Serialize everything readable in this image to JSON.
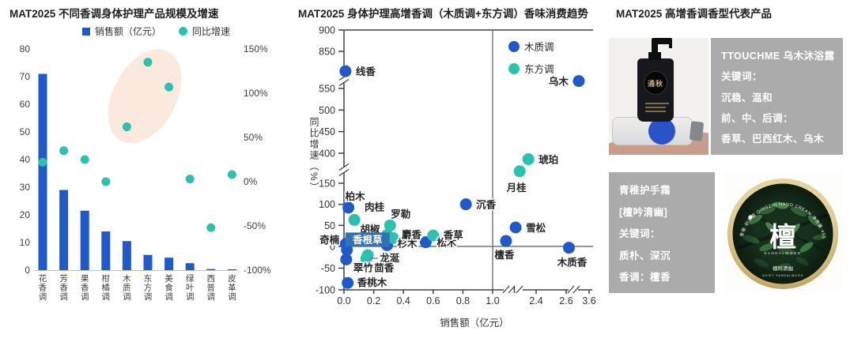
{
  "colors": {
    "blue": "#1f5ac8",
    "teal": "#2cc1af",
    "highlight": "#fbe9dd",
    "axis": "#404040",
    "quadrant": "#595959",
    "label_box": "#2e74b5",
    "gray_box": "#ababab"
  },
  "titles": {
    "left": "MAT2025 不同香调身体护理产品规模及增速",
    "middle": "MAT2025 身体护理高增香调（木质调+东方调）香味消费趋势",
    "right": "MAT2025 高增香调香型代表产品"
  },
  "left_legend": {
    "sales": "销售额（亿元）",
    "growth": "同比增速"
  },
  "middle_legend": {
    "woody": "木质调",
    "oriental": "东方调"
  },
  "middle_axis": {
    "y_label": "同比增速（%）",
    "x_label": "销售额（亿元）"
  },
  "chart_data": [
    {
      "id": "fragrance-family-combo",
      "type": "bar",
      "title": "MAT2025 不同香调身体护理产品规模及增速",
      "categories": [
        "花香调",
        "芳香调",
        "果香调",
        "柑橘调",
        "木质调",
        "东方调",
        "美食调",
        "绿叶调",
        "西普调",
        "皮革调"
      ],
      "series": [
        {
          "name": "销售额（亿元）",
          "type": "bar",
          "axis": "left",
          "values": [
            71,
            29,
            21.5,
            14,
            10.5,
            5.5,
            4.5,
            2.5,
            0.4,
            0.3
          ]
        },
        {
          "name": "同比增速",
          "type": "scatter",
          "axis": "right",
          "values": [
            22,
            35,
            25,
            0,
            62,
            135,
            107,
            3,
            -52,
            8
          ]
        }
      ],
      "left_axis": {
        "min": 0,
        "max": 80,
        "ticks": [
          0,
          10,
          20,
          30,
          40,
          50,
          60,
          70,
          80
        ]
      },
      "right_axis": {
        "min": -100,
        "max": 150,
        "ticks": [
          {
            "v": 150,
            "label": "150%"
          },
          {
            "v": 100,
            "label": "100%"
          },
          {
            "v": 50,
            "label": "50%"
          },
          {
            "v": 0,
            "label": "0%"
          },
          {
            "v": -50,
            "label": "-50%"
          },
          {
            "v": -100,
            "label": "-100%"
          }
        ]
      },
      "grid": false,
      "legend_position": "top",
      "highlight_ellipse_over": [
        "木质调",
        "东方调",
        "美食调"
      ]
    },
    {
      "id": "scent-growth-scatter",
      "type": "scatter",
      "title": "MAT2025 身体护理高增香调（木质调+东方调）香味消费趋势",
      "xlabel": "销售额（亿元）",
      "ylabel": "同比增速（%）",
      "x_axis": {
        "ticks": [
          {
            "v": 0,
            "label": "0.0"
          },
          {
            "v": 0.2,
            "label": "0.2"
          },
          {
            "v": 0.4,
            "label": "0.4"
          },
          {
            "v": 0.6,
            "label": "0.6"
          },
          {
            "v": 0.8,
            "label": "0.8"
          },
          {
            "v": 1.0,
            "label": "1.0"
          },
          {
            "v": 2.4,
            "label": "2.4"
          },
          {
            "v": 2.6,
            "label": "2.6"
          },
          {
            "v": 3.6,
            "label": "3.6"
          }
        ],
        "breaks": 2
      },
      "y_axis": {
        "ticks": [
          {
            "v": 900,
            "label": "900"
          },
          {
            "v": 850,
            "label": "850"
          },
          {
            "v": 550,
            "label": "550"
          },
          {
            "v": 500,
            "label": "500"
          },
          {
            "v": 450,
            "label": "450"
          },
          {
            "v": 400,
            "label": "400"
          },
          {
            "v": 150,
            "label": "150"
          },
          {
            "v": 100,
            "label": "100"
          },
          {
            "v": 50,
            "label": "50"
          },
          {
            "v": 0,
            "label": "0"
          },
          {
            "v": -50,
            "label": "-50"
          },
          {
            "v": -100,
            "label": "-100"
          }
        ],
        "breaks": 2
      },
      "quadrant_lines": {
        "x": 1.0,
        "y": 0
      },
      "legend_position": "top-right",
      "series": [
        {
          "name": "木质调",
          "color_key": "blue",
          "points": [
            {
              "label": "线香",
              "x": 0.01,
              "y": 690,
              "dx": 13,
              "dy": 5,
              "anchor": "start"
            },
            {
              "label": "乌木",
              "x": 3.15,
              "y": 610,
              "dx": -13,
              "dy": 5,
              "anchor": "end"
            },
            {
              "label": "沉香",
              "x": 0.82,
              "y": 100,
              "dx": 13,
              "dy": 5,
              "anchor": "start"
            },
            {
              "label": "柏木",
              "x": 0.03,
              "y": 92,
              "dx": -4,
              "dy": -10,
              "anchor": "start"
            },
            {
              "label": "雪松",
              "x": 1.74,
              "y": 45,
              "dx": 13,
              "dy": 5,
              "anchor": "start"
            },
            {
              "label": "檀香",
              "x": 1.43,
              "y": 13,
              "dx": -2,
              "dy": 22,
              "anchor": "middle"
            },
            {
              "label": "松木",
              "x": 0.55,
              "y": 10,
              "dx": 14,
              "dy": 5,
              "anchor": "start"
            },
            {
              "label": "杉木",
              "x": 0.29,
              "y": 3,
              "dx": 13,
              "dy": 2,
              "anchor": "start"
            },
            {
              "label": "木质香",
              "x": 2.72,
              "y": -3,
              "dx": 4,
              "dy": 23,
              "anchor": "middle"
            },
            {
              "label": "奇楠",
              "x": 0.012,
              "y": 6,
              "dx": -8,
              "dy": -1,
              "anchor": "end"
            },
            {
              "label": "香根草",
              "x": 0.02,
              "y": -8,
              "dx": -2,
              "dy": -22,
              "anchor": "start",
              "boxed": true
            },
            {
              "label": "翠竹",
              "x": 0.015,
              "y": -30,
              "dx": 9,
              "dy": 15,
              "anchor": "start"
            },
            {
              "label": "香桃木",
              "x": 0.025,
              "y": -84,
              "dx": 12,
              "dy": 4,
              "anchor": "start"
            }
          ]
        },
        {
          "name": "东方调",
          "color_key": "teal",
          "points": [
            {
              "label": "琥珀",
              "x": 2.15,
              "y": 350,
              "dx": 13,
              "dy": 5,
              "anchor": "start"
            },
            {
              "label": "月桂",
              "x": 1.87,
              "y": 250,
              "dx": -4,
              "dy": 25,
              "anchor": "middle"
            },
            {
              "label": "肉桂",
              "x": 0.07,
              "y": 63,
              "dx": 13,
              "dy": -12,
              "anchor": "start"
            },
            {
              "label": "罗勒",
              "x": 0.31,
              "y": 50,
              "dx": 1,
              "dy": -10,
              "anchor": "start"
            },
            {
              "label": "胡椒",
              "x": 0.29,
              "y": 27,
              "dx": -9,
              "dy": -3,
              "anchor": "end"
            },
            {
              "label": "麝香",
              "x": 0.33,
              "y": 20,
              "dx": 11,
              "dy": 0,
              "anchor": "start"
            },
            {
              "label": "香草",
              "x": 0.6,
              "y": 26,
              "dx": 13,
              "dy": 4,
              "anchor": "start"
            },
            {
              "label": "龙涎",
              "x": 0.16,
              "y": -20,
              "dx": 15,
              "dy": 8,
              "anchor": "start",
              "leader": true
            },
            {
              "label": "茴香",
              "x": 0.15,
              "y": -28,
              "dx": 10,
              "dy": 16,
              "anchor": "start",
              "leader": true
            }
          ]
        }
      ]
    }
  ],
  "right_panel": {
    "bath_box": {
      "lines": [
        "TTOUCHME 乌木沐浴露",
        "关键词：",
        "沉稳、温和",
        "前、中、后调：",
        "香草、巴西红木、乌木"
      ]
    },
    "hand_box": {
      "lines": [
        "青稚护手霜",
        "[檀吟清幽]",
        "关键词：",
        "质朴、深沉",
        "香调：檀香"
      ]
    },
    "photo_bath": {
      "bottle_label": "通秋"
    },
    "tin": {
      "arc_text": "青稚·护手霜 QINGZHI HAND CREAM 净含量:45g",
      "center_char": "檀",
      "sub_text": "SANDALWOOD",
      "name_text": "檀吟清幽",
      "name_sub": "QUIET SANDALWOOD"
    }
  }
}
